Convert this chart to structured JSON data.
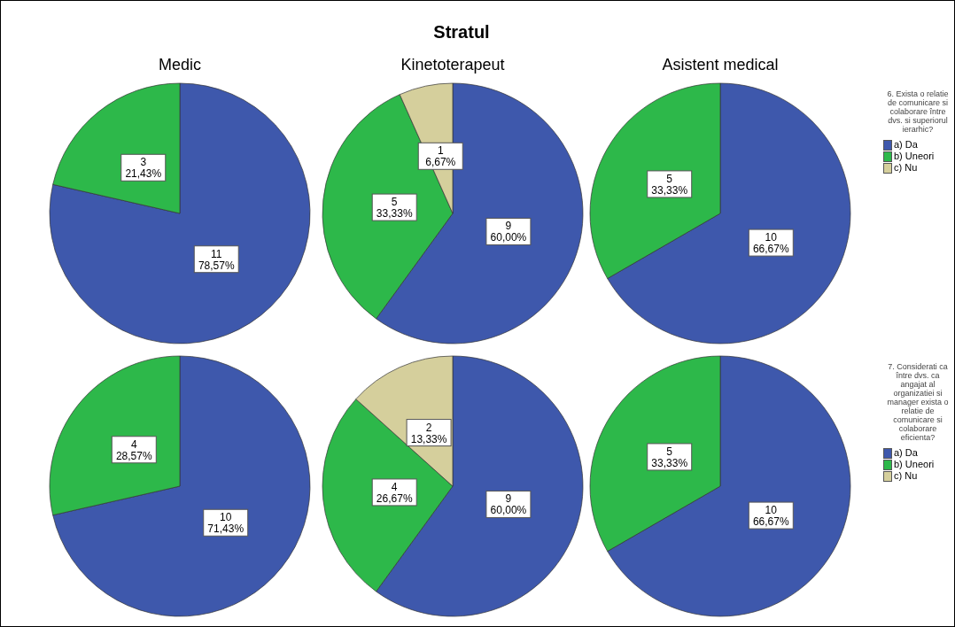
{
  "chart_data": [
    {
      "type": "pie",
      "title": "Medic",
      "annotations": [
        "Stratul"
      ],
      "values": [
        11,
        3,
        0
      ],
      "colors": [
        "#3e58ac",
        "#2db84a",
        "#d5cf9c"
      ],
      "value_labels": [
        "11\n78,57%",
        "3\n21,43%",
        null
      ],
      "legend": false
    },
    {
      "type": "pie",
      "title": "Kinetoterapeut",
      "values": [
        9,
        5,
        1
      ],
      "colors": [
        "#3e58ac",
        "#2db84a",
        "#d5cf9c"
      ],
      "value_labels": [
        "9\n60,00%",
        "5\n33,33%",
        "1\n6,67%"
      ],
      "legend": false
    },
    {
      "type": "pie",
      "title": "Asistent medical",
      "categories": [
        "a) Da",
        "b) Uneori",
        "c) Nu"
      ],
      "values": [
        10,
        5,
        0
      ],
      "colors": [
        "#3e58ac",
        "#2db84a",
        "#d5cf9c"
      ],
      "value_labels": [
        "10\n66,67%",
        "5\n33,33%",
        null
      ],
      "legend": "right",
      "legend_title": "6. Exista o relatie de comunicare si colaborare între dvs. si superiorul ierarhic?"
    },
    {
      "type": "pie",
      "values": [
        10,
        4,
        0
      ],
      "colors": [
        "#3e58ac",
        "#2db84a",
        "#d5cf9c"
      ],
      "value_labels": [
        "10\n71,43%",
        "4\n28,57%",
        null
      ],
      "legend": false
    },
    {
      "type": "pie",
      "values": [
        9,
        4,
        2
      ],
      "colors": [
        "#3e58ac",
        "#2db84a",
        "#d5cf9c"
      ],
      "value_labels": [
        "9\n60,00%",
        "4\n26,67%",
        "2\n13,33%"
      ],
      "legend": false
    },
    {
      "type": "pie",
      "categories": [
        "a) Da",
        "b) Uneori",
        "c) Nu"
      ],
      "values": [
        10,
        5,
        0
      ],
      "colors": [
        "#3e58ac",
        "#2db84a",
        "#d5cf9c"
      ],
      "value_labels": [
        "10\n66,67%",
        "5\n33,33%",
        null
      ],
      "legend": "right",
      "legend_title": "7. Considerati ca între dvs. ca angajat al organizatiei si manager exista o relatie de comunicare si colaborare eficienta?"
    }
  ]
}
